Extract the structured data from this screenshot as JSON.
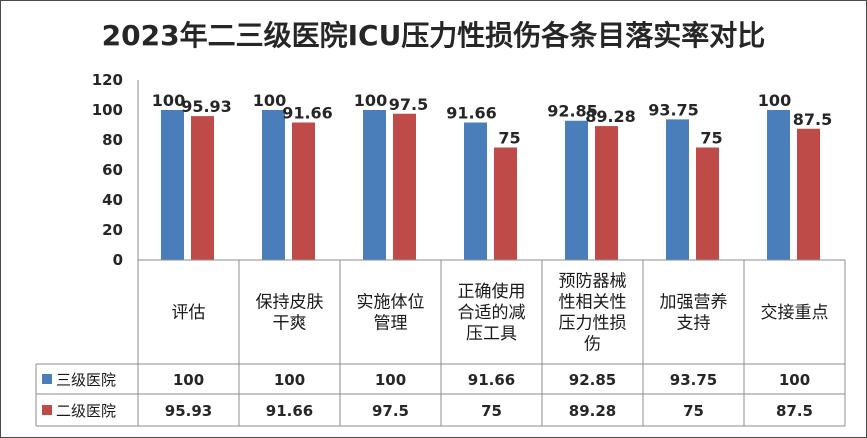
{
  "chart_data": {
    "type": "bar",
    "title": "2023年二三级医院ICU压力性损伤各条目落实率对比",
    "categories": [
      "评估",
      "保持皮肤干爽",
      "实施体位管理",
      "正确使用合适的减压工具",
      "预防器械性相关性压力性损伤",
      "加强营养支持",
      "交接重点"
    ],
    "category_lines": [
      [
        "评估"
      ],
      [
        "保持皮肤",
        "干爽"
      ],
      [
        "实施体位",
        "管理"
      ],
      [
        "正确使用",
        "合适的减",
        "压工具"
      ],
      [
        "预防器械",
        "性相关性",
        "压力性损",
        "伤"
      ],
      [
        "加强营养",
        "支持"
      ],
      [
        "交接重点"
      ]
    ],
    "series": [
      {
        "name": "三级医院",
        "color": "#4a7ebb",
        "values": [
          100,
          100,
          100,
          91.66,
          92.85,
          93.75,
          100
        ],
        "labels": [
          "100",
          "100",
          "100",
          "91.66",
          "92.85",
          "93.75",
          "100"
        ]
      },
      {
        "name": "二级医院",
        "color": "#be4b48",
        "values": [
          95.93,
          91.66,
          97.5,
          75,
          89.28,
          75,
          87.5
        ],
        "labels": [
          "95.93",
          "91.66",
          "97.5",
          "75",
          "89.28",
          "75",
          "87.5"
        ]
      }
    ],
    "ylim": [
      0,
      120
    ],
    "yticks": [
      "0",
      "20",
      "40",
      "60",
      "80",
      "100",
      "120"
    ],
    "grid": false,
    "legend": "data-table"
  }
}
